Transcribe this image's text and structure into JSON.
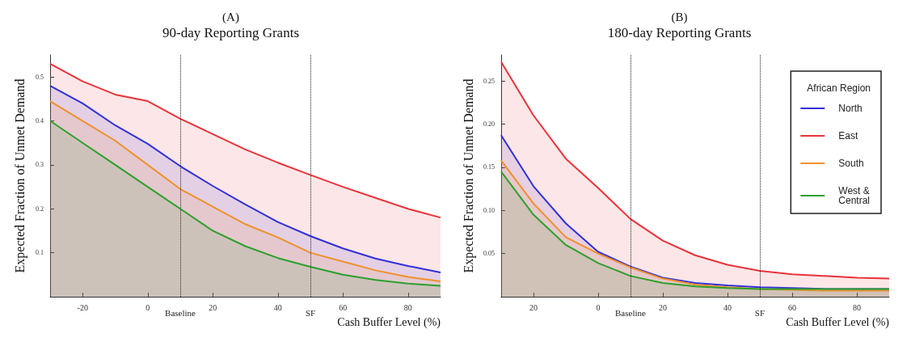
{
  "chart_data": [
    {
      "type": "area",
      "title": "(A)",
      "subtitle": "90-day Reporting Grants",
      "xlabel": "Cash Buffer Level (%)",
      "ylabel": "Expected Fraction of Unmet Demand",
      "x": [
        -30,
        -20,
        -10,
        0,
        10,
        20,
        30,
        40,
        50,
        60,
        70,
        80,
        90
      ],
      "xlim": [
        -30,
        90
      ],
      "xticks": [
        -20,
        0,
        20,
        40,
        60,
        80
      ],
      "ylim": [
        0,
        0.55
      ],
      "yticks": [
        0.1,
        0.2,
        0.3,
        0.4,
        0.5
      ],
      "legend": false,
      "grid": false,
      "series": [
        {
          "color": "#e8333a",
          "values": [
            0.53,
            0.49,
            0.46,
            0.445,
            0.405,
            0.37,
            0.335,
            0.305,
            0.277,
            0.25,
            0.225,
            0.2,
            0.18
          ]
        },
        {
          "color": "#3030d8",
          "values": [
            0.48,
            0.44,
            0.39,
            0.348,
            0.297,
            0.252,
            0.21,
            0.17,
            0.138,
            0.11,
            0.087,
            0.07,
            0.055
          ]
        },
        {
          "color": "#f0902a",
          "values": [
            0.445,
            0.4,
            0.355,
            0.3,
            0.245,
            0.205,
            0.165,
            0.135,
            0.1,
            0.08,
            0.06,
            0.045,
            0.035
          ]
        },
        {
          "color": "#2ca02c",
          "values": [
            0.4,
            0.35,
            0.3,
            0.25,
            0.2,
            0.15,
            0.115,
            0.088,
            0.068,
            0.05,
            0.038,
            0.03,
            0.025
          ]
        }
      ],
      "ref_lines": [
        {
          "axis": "x",
          "value": 10,
          "label": "Baseline",
          "line_style": "dotted"
        },
        {
          "axis": "x",
          "value": 50,
          "label": "SF",
          "line_style": "dotted"
        }
      ]
    },
    {
      "type": "area",
      "title": "(B)",
      "subtitle": "180-day Reporting Grants",
      "xlabel": "Cash Buffer Level (%)",
      "ylabel": "Expected Fraction of Unmet Demand",
      "x": [
        -30,
        -20,
        -10,
        0,
        10,
        20,
        30,
        40,
        50,
        60,
        70,
        80,
        90
      ],
      "xlim": [
        -30,
        90
      ],
      "xticks": [
        {
          "value": -20,
          "label": "20"
        },
        0,
        20,
        40,
        60,
        80
      ],
      "ylim": [
        0,
        0.28
      ],
      "yticks": [
        {
          "value": 0.05,
          "label": "0.05"
        },
        {
          "value": 0.1,
          "label": "0.10"
        },
        {
          "value": 0.15,
          "label": "0.15"
        },
        {
          "value": 0.2,
          "label": "0.20"
        },
        {
          "value": 0.25,
          "label": "0.25"
        }
      ],
      "legend": "top right",
      "legend_title": "African Region",
      "grid": false,
      "series": [
        {
          "name": "North",
          "color": "#3030d8",
          "values": [
            0.187,
            0.128,
            0.085,
            0.052,
            0.035,
            0.022,
            0.016,
            0.013,
            0.011,
            0.01,
            0.009,
            0.009,
            0.009
          ]
        },
        {
          "name": "East",
          "color": "#e8333a",
          "values": [
            0.272,
            0.21,
            0.16,
            0.126,
            0.09,
            0.065,
            0.048,
            0.037,
            0.03,
            0.026,
            0.024,
            0.022,
            0.021
          ]
        },
        {
          "name": "South",
          "color": "#f0902a",
          "values": [
            0.158,
            0.108,
            0.069,
            0.05,
            0.034,
            0.021,
            0.014,
            0.011,
            0.009,
            0.008,
            0.007,
            0.007,
            0.007
          ]
        },
        {
          "name": "West &\nCentral",
          "color": "#2ca02c",
          "values": [
            0.145,
            0.095,
            0.06,
            0.039,
            0.024,
            0.016,
            0.012,
            0.01,
            0.009,
            0.009,
            0.009,
            0.009,
            0.009
          ]
        }
      ],
      "ref_lines": [
        {
          "axis": "x",
          "value": 10,
          "label": "Baseline",
          "line_style": "dotted"
        },
        {
          "axis": "x",
          "value": 50,
          "label": "SF",
          "line_style": "dotted"
        }
      ]
    }
  ]
}
